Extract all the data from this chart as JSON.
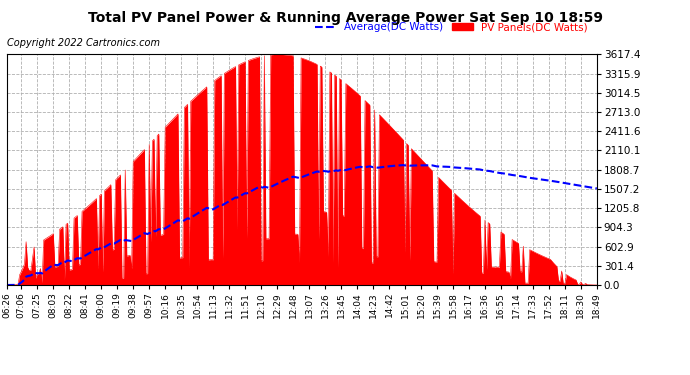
{
  "title": "Total PV Panel Power & Running Average Power Sat Sep 10 18:59",
  "copyright": "Copyright 2022 Cartronics.com",
  "legend_avg": "Average(DC Watts)",
  "legend_pv": "PV Panels(DC Watts)",
  "yticks": [
    0.0,
    301.4,
    602.9,
    904.3,
    1205.8,
    1507.2,
    1808.7,
    2110.1,
    2411.6,
    2713.0,
    3014.5,
    3315.9,
    3617.4
  ],
  "ylim": [
    0,
    3617.4
  ],
  "background_color": "#ffffff",
  "grid_color": "#b0b0b0",
  "bar_color": "#ff0000",
  "avg_line_color": "#0000ff",
  "x_labels": [
    "06:26",
    "07:06",
    "07:25",
    "08:03",
    "08:22",
    "08:41",
    "09:00",
    "09:19",
    "09:38",
    "09:57",
    "10:16",
    "10:35",
    "10:54",
    "11:13",
    "11:32",
    "11:51",
    "12:10",
    "12:29",
    "12:48",
    "13:07",
    "13:26",
    "13:45",
    "14:04",
    "14:23",
    "14:42",
    "15:01",
    "15:20",
    "15:39",
    "15:58",
    "16:17",
    "16:36",
    "16:55",
    "17:14",
    "17:33",
    "17:52",
    "18:11",
    "18:30",
    "18:49"
  ]
}
